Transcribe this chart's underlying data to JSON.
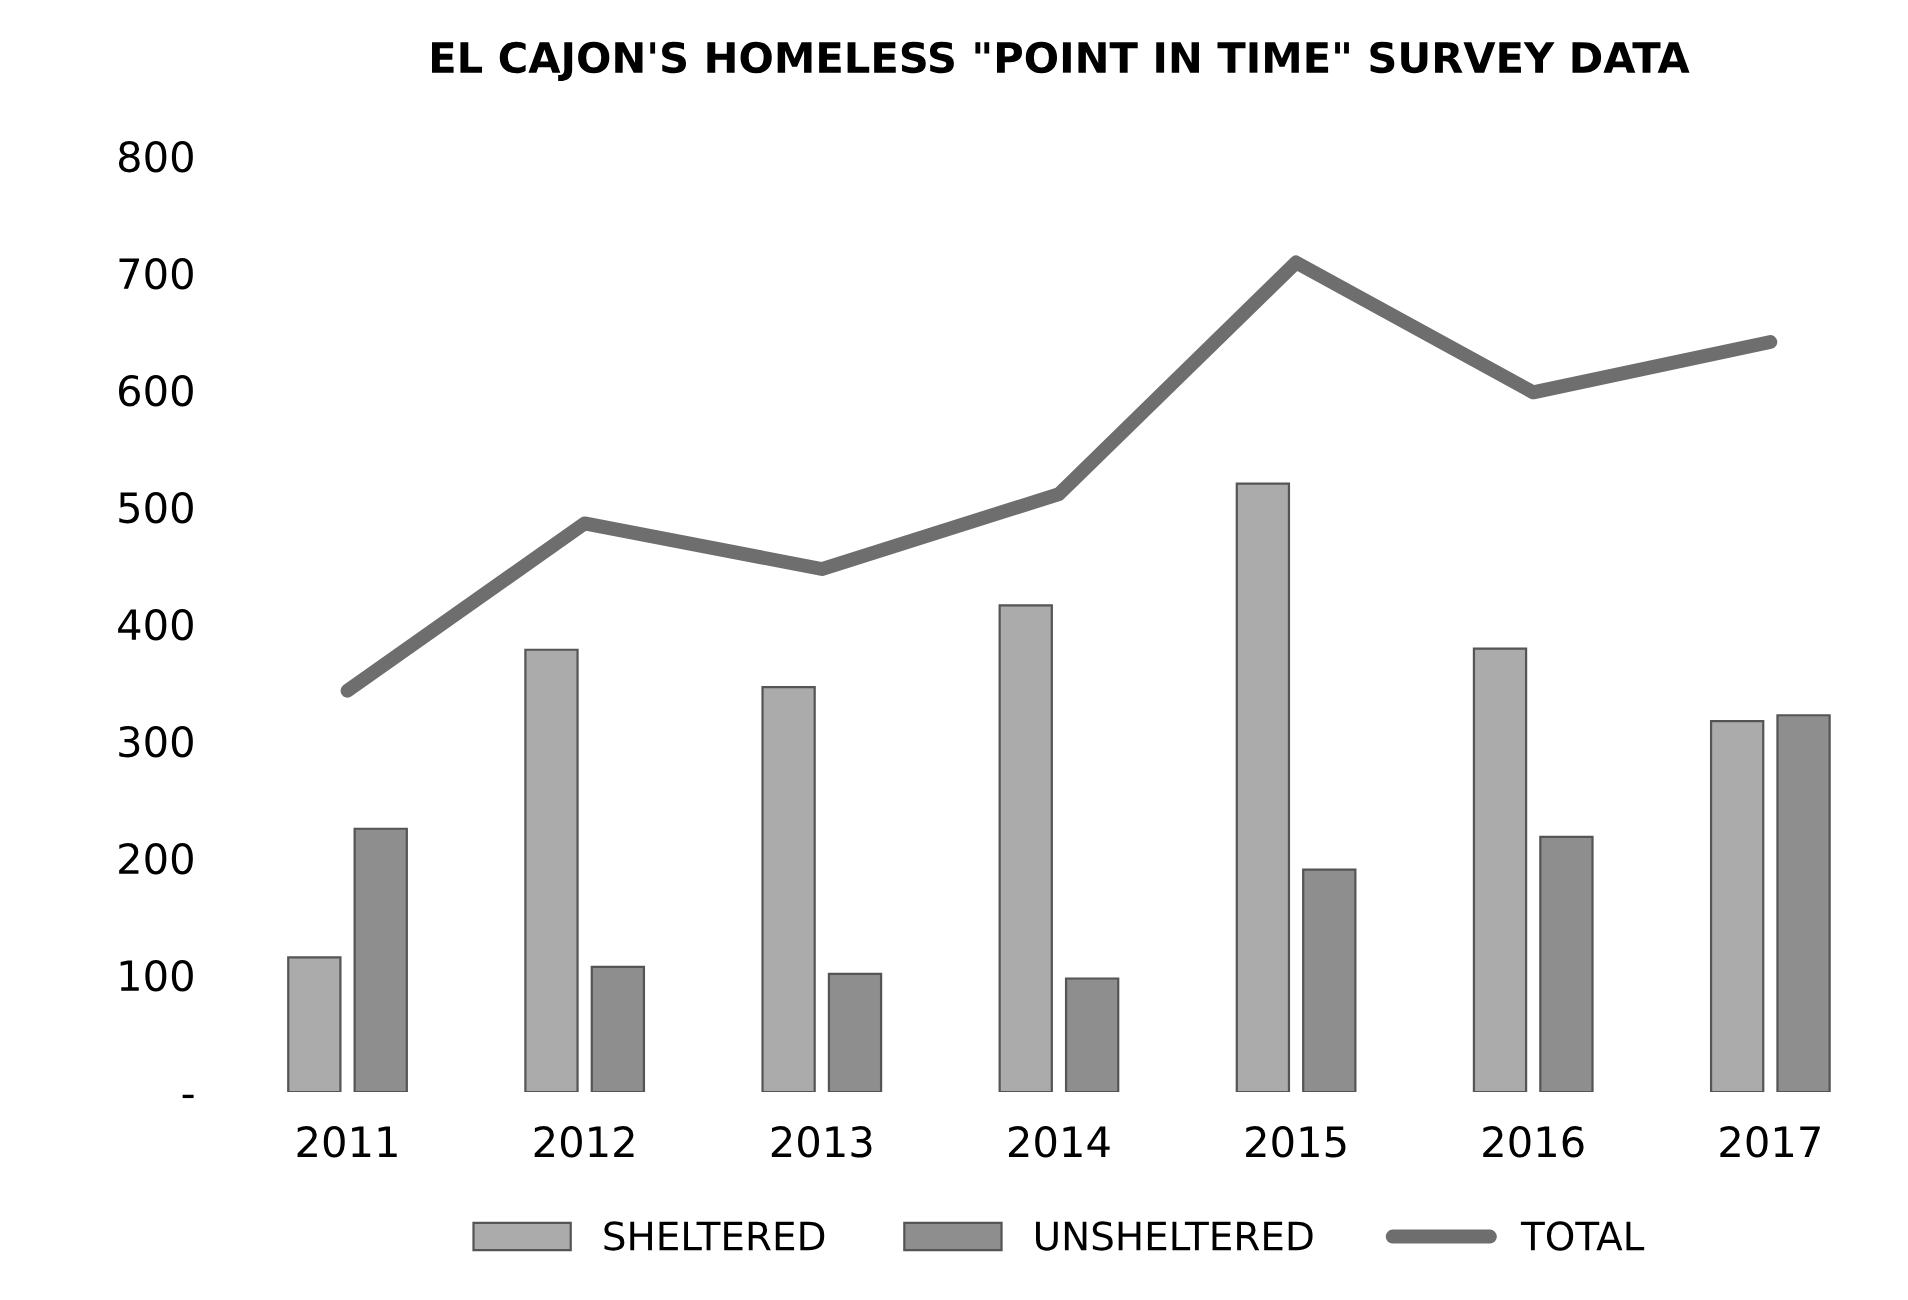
{
  "chart_data": {
    "type": "bar",
    "title": "EL CAJON'S HOMELESS \"POINT IN TIME\" SURVEY DATA",
    "categories": [
      "2011",
      "2012",
      "2013",
      "2014",
      "2015",
      "2016",
      "2017"
    ],
    "series": [
      {
        "name": "SHELTERED",
        "color": "#ababab",
        "values": [
          115,
          378,
          346,
          416,
          520,
          379,
          317
        ]
      },
      {
        "name": "UNSHELTERED",
        "color": "#8e8e8e",
        "values": [
          225,
          107,
          101,
          97,
          190,
          218,
          322
        ]
      },
      {
        "name": "TOTAL",
        "type": "line",
        "color": "#6e6e6e",
        "values": [
          343,
          486,
          447,
          511,
          709,
          598,
          641
        ]
      }
    ],
    "ylim": [
      0,
      800
    ],
    "yticks": [
      {
        "value": 0,
        "label": "-"
      },
      100,
      200,
      300,
      400,
      500,
      600,
      700,
      800
    ],
    "grid": false,
    "legend": "bottom"
  }
}
